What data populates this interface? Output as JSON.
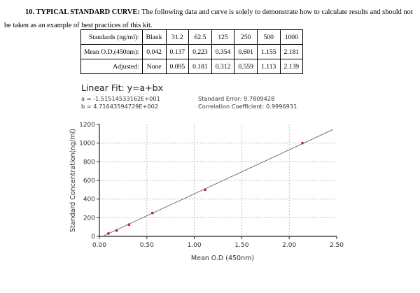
{
  "intro": {
    "heading": "10. TYPICAL STANDARD CURVE:",
    "text": "The following data and curve is solely to demonstrate how to calculate results and should not be taken as an example of best practices of this kit."
  },
  "table": {
    "rows": [
      {
        "label": "Standards (ng/ml):",
        "cells": [
          "Blank",
          "31.2",
          "62.5",
          "125",
          "250",
          "500",
          "1000"
        ]
      },
      {
        "label": "Mean O.D.(450nm):",
        "cells": [
          "0.042",
          "0.137",
          "0.223",
          "0.354",
          "0.601",
          "1.155",
          "2.181"
        ]
      },
      {
        "label": "Adjusted:",
        "cells": [
          "None",
          "0.095",
          "0.181",
          "0.312",
          "0.559",
          "1.113",
          "2.139"
        ]
      }
    ]
  },
  "fit": {
    "title": "Linear Fit: y=a+bx",
    "a": "a = -1.51514533162E+001",
    "b": "b = 4.71643594729E+002",
    "std_error": "Standard Error: 9.7809428",
    "correlation": "Correlation Coefficient: 0.9996931"
  },
  "chart_data": {
    "type": "scatter",
    "xlabel": "Mean O.D (450nm)",
    "ylabel": "Standard Concentration(ng/ml)",
    "xlim": [
      0,
      2.5
    ],
    "ylim": [
      0,
      1200
    ],
    "x_ticks": [
      0,
      0.5,
      1,
      1.5,
      2,
      2.5
    ],
    "x_tick_labels": [
      "0.00",
      "0.50",
      "1.00",
      "1.50",
      "2.00",
      "2.50"
    ],
    "y_ticks": [
      0,
      200,
      400,
      600,
      800,
      1000,
      1200
    ],
    "y_tick_labels": [
      "0",
      "200",
      "400",
      "600",
      "800",
      "1000",
      "1200"
    ],
    "grid": true,
    "points": {
      "x": [
        0.095,
        0.181,
        0.312,
        0.559,
        1.113,
        2.139
      ],
      "y": [
        31.2,
        62.5,
        125,
        250,
        500,
        1000
      ]
    },
    "fit_line": {
      "intercept": -15.1514533162,
      "slope": 471.643594729,
      "x_range": [
        0.05,
        2.46
      ]
    },
    "colors": {
      "points": "#b03030",
      "line": "#666666",
      "grid": "#9a9a9a",
      "axis": "#222222"
    }
  }
}
